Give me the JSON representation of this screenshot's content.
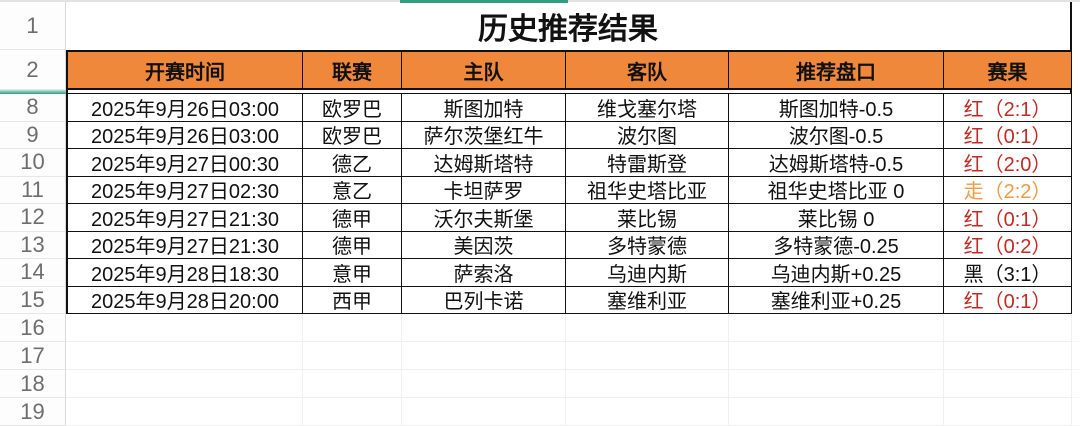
{
  "sheet": {
    "title": "历史推荐结果",
    "title_row_number": "1",
    "header_row_number": "2",
    "columns": [
      "开赛时间",
      "联赛",
      "主队",
      "客队",
      "推荐盘口",
      "赛果"
    ],
    "rows": [
      {
        "num": "8",
        "time": "2025年9月26日03:00",
        "league": "欧罗巴",
        "home": "斯图加特",
        "away": "维戈塞尔塔",
        "handicap": "斯图加特-0.5",
        "result": "红（2:1）",
        "result_color": "#c02b24"
      },
      {
        "num": "9",
        "time": "2025年9月26日03:00",
        "league": "欧罗巴",
        "home": "萨尔茨堡红牛",
        "away": "波尔图",
        "handicap": "波尔图-0.5",
        "result": "红（0:1）",
        "result_color": "#c02b24"
      },
      {
        "num": "10",
        "time": "2025年9月27日00:30",
        "league": "德乙",
        "home": "达姆斯塔特",
        "away": "特雷斯登",
        "handicap": "达姆斯塔特-0.5",
        "result": "红（2:0）",
        "result_color": "#c02b24"
      },
      {
        "num": "11",
        "time": "2025年9月27日02:30",
        "league": "意乙",
        "home": "卡坦萨罗",
        "away": "祖华史塔比亚",
        "handicap": "祖华史塔比亚 0",
        "result": "走（2:2）",
        "result_color": "#ed9c40"
      },
      {
        "num": "12",
        "time": "2025年9月27日21:30",
        "league": "德甲",
        "home": "沃尔夫斯堡",
        "away": "莱比锡",
        "handicap": "莱比锡 0",
        "result": "红（0:1）",
        "result_color": "#c02b24"
      },
      {
        "num": "13",
        "time": "2025年9月27日21:30",
        "league": "德甲",
        "home": "美因茨",
        "away": "多特蒙德",
        "handicap": "多特蒙德-0.25",
        "result": "红（0:2）",
        "result_color": "#c02b24"
      },
      {
        "num": "14",
        "time": "2025年9月28日18:30",
        "league": "意甲",
        "home": "萨索洛",
        "away": "乌迪内斯",
        "handicap": "乌迪内斯+0.25",
        "result": "黑（3:1）",
        "result_color": "#111111"
      },
      {
        "num": "15",
        "time": "2025年9月28日20:00",
        "league": "西甲",
        "home": "巴列卡诺",
        "away": "塞维利亚",
        "handicap": "塞维利亚+0.25",
        "result": "红（0:1）",
        "result_color": "#c02b24"
      }
    ],
    "trailing_row_numbers": [
      "16",
      "17",
      "18",
      "19"
    ],
    "colors": {
      "header_bg": "#f0883c",
      "result_red": "#c02b24",
      "result_push_orange": "#ed9c40",
      "result_black": "#111111",
      "hidden_rows_indicator_green": "#2f9e82",
      "table_border": "#111111",
      "gridline": "#eeeeee",
      "row_number_text": "#6e6e6e"
    }
  }
}
